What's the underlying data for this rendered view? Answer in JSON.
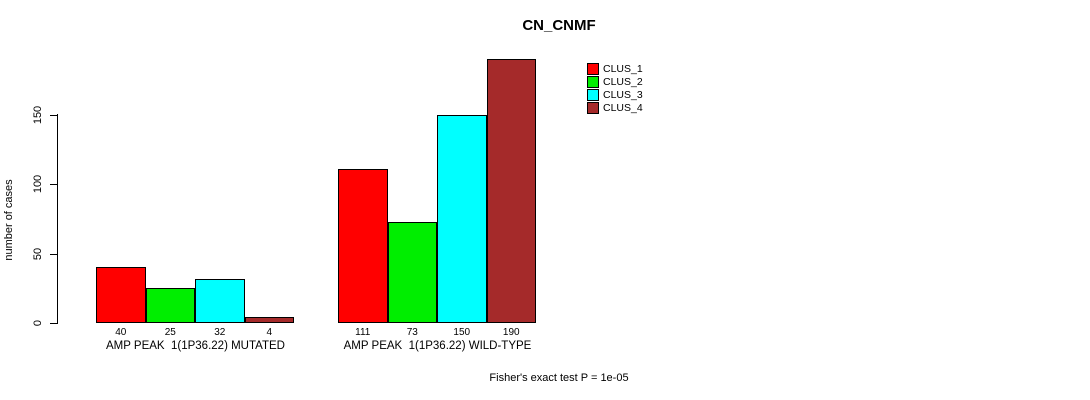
{
  "title": "CN_CNMF",
  "ylabel": "number of cases",
  "footer": "Fisher's exact test P = 1e-05",
  "chart_data": {
    "type": "bar",
    "title": "CN_CNMF",
    "xlabel": "",
    "ylabel": "number of cases",
    "ylim": [
      0,
      195
    ],
    "yticks": [
      0,
      50,
      100,
      150
    ],
    "grid": false,
    "legend_position": "top-right",
    "categories": [
      "AMP PEAK  1(1P36.22) MUTATED",
      "AMP PEAK  1(1P36.22) WILD-TYPE"
    ],
    "series": [
      {
        "name": "CLUS_1",
        "color": "#FF0000",
        "values": [
          40,
          111
        ]
      },
      {
        "name": "CLUS_2",
        "color": "#00EE00",
        "values": [
          25,
          73
        ]
      },
      {
        "name": "CLUS_3",
        "color": "#00FFFF",
        "values": [
          32,
          150
        ]
      },
      {
        "name": "CLUS_4",
        "color": "#A52A2A",
        "values": [
          4,
          190
        ]
      }
    ],
    "groups": [
      {
        "label": "AMP PEAK  1(1P36.22) MUTATED",
        "values": [
          40,
          25,
          32,
          4
        ]
      },
      {
        "label": "AMP PEAK  1(1P36.22) WILD-TYPE",
        "values": [
          111,
          73,
          150,
          190
        ]
      }
    ],
    "bar_value_labels": [
      40,
      25,
      32,
      4,
      111,
      73,
      150,
      190
    ],
    "annotation": "Fisher's exact test P = 1e-05"
  }
}
